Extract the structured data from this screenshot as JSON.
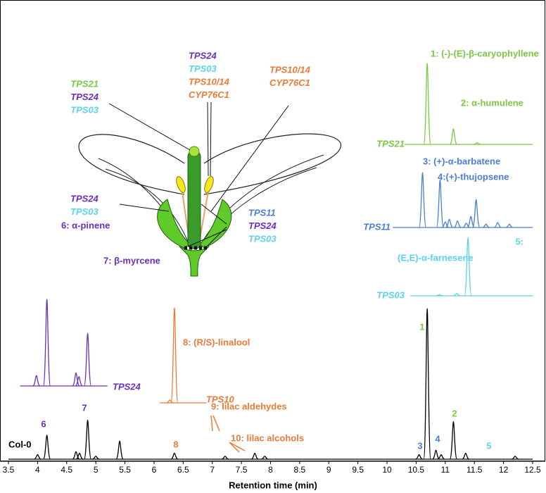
{
  "chart_data": {
    "type": "chromatogram",
    "x_label": "Retention time (min)",
    "xlim": [
      3.5,
      12.5
    ],
    "xticks": [
      3.5,
      4,
      4.5,
      5,
      5.5,
      6,
      6.5,
      7,
      7.5,
      8,
      8.5,
      9,
      9.5,
      10,
      10.5,
      11,
      11.5,
      12,
      12.5
    ],
    "ylim": [
      0,
      100
    ],
    "series": [
      {
        "name": "Col-0",
        "color": "#000000",
        "xlim": [
          3.5,
          12.5
        ],
        "x": [
          4.0,
          4.16,
          4.66,
          4.72,
          4.86,
          5.0,
          5.41,
          6.35,
          7.22,
          7.73,
          7.9,
          10.55,
          10.69,
          10.84,
          10.93,
          11.14,
          11.35,
          12.2
        ],
        "values": [
          3,
          16,
          5,
          4,
          26,
          2,
          12,
          4,
          2,
          4,
          2,
          3,
          100,
          6,
          3,
          25,
          4,
          2
        ]
      },
      {
        "name": "TPS21",
        "color": "#7ac943",
        "xlim": [
          10.3,
          12.5
        ],
        "x": [
          10.69,
          11.14,
          11.55
        ],
        "values": [
          100,
          19,
          2
        ]
      },
      {
        "name": "TPS11",
        "color": "#4a7fd4",
        "xlim": [
          10.1,
          12.5
        ],
        "x": [
          10.61,
          10.91,
          11.0,
          11.07,
          11.21,
          11.36,
          11.44,
          11.53,
          11.7,
          11.9,
          12.1
        ],
        "values": [
          100,
          87,
          10,
          15,
          12,
          8,
          20,
          51,
          6,
          9,
          6
        ]
      },
      {
        "name": "TPS03",
        "color": "#5bd3ea",
        "xlim": [
          10.4,
          12.5
        ],
        "x": [
          10.9,
          11.2,
          11.39
        ],
        "values": [
          2,
          4,
          100
        ]
      },
      {
        "name": "TPS24",
        "color": "#6a2fc0",
        "xlim": [
          3.7,
          5.2
        ],
        "x": [
          3.98,
          4.16,
          4.66,
          4.71,
          4.86
        ],
        "values": [
          12,
          100,
          15,
          11,
          61
        ]
      },
      {
        "name": "TPS10",
        "color": "#ec7a36",
        "xlim": [
          6.1,
          6.9
        ],
        "x": [
          6.27,
          6.35
        ],
        "values": [
          3,
          100
        ]
      }
    ],
    "compounds": [
      {
        "text": "1: (-)-(E)-β-caryophyllene",
        "color": "#7ac943"
      },
      {
        "text": "2: α-humulene",
        "color": "#7ac943"
      },
      {
        "text": "3: (+)-α-barbatene",
        "color": "#4a7fd4"
      },
      {
        "text": "4:(+)-thujopsene",
        "color": "#4a7fd4"
      },
      {
        "text": "5:",
        "color": "#5bd3ea"
      },
      {
        "text": "(E,E)-α-farnesene",
        "color": "#5bd3ea"
      },
      {
        "text": "6: α-pinene",
        "color": "#6a2fc0"
      },
      {
        "text": "7: β-myrcene",
        "color": "#6a2fc0"
      },
      {
        "text": "8: (R/S)-linalool",
        "color": "#ec7a36"
      },
      {
        "text": "9: lilac aldehydes",
        "color": "#ec7a36"
      },
      {
        "text": "10: lilac alcohols",
        "color": "#ec7a36"
      }
    ],
    "peak_labels": [
      {
        "text": "6",
        "color": "#6a2fc0"
      },
      {
        "text": "7",
        "color": "#6a2fc0"
      },
      {
        "text": "8",
        "color": "#ec7a36"
      },
      {
        "text": "1",
        "color": "#7ac943"
      },
      {
        "text": "2",
        "color": "#7ac943"
      },
      {
        "text": "3",
        "color": "#4a7fd4"
      },
      {
        "text": "4",
        "color": "#4a7fd4"
      },
      {
        "text": "5",
        "color": "#5bd3ea"
      }
    ]
  },
  "flower": {
    "groups": [
      [
        {
          "text": "TPS21",
          "color": "#7ac943"
        },
        {
          "text": "TPS24",
          "color": "#6a2fc0"
        },
        {
          "text": "TPS03",
          "color": "#5bd3ea"
        }
      ],
      [
        {
          "text": "TPS24",
          "color": "#6a2fc0"
        },
        {
          "text": "TPS03",
          "color": "#5bd3ea"
        },
        {
          "text": "TPS10/14",
          "color": "#ec7a36"
        },
        {
          "text": "CYP76C1",
          "color": "#ec7a36"
        }
      ],
      [
        {
          "text": "TPS10/14",
          "color": "#ec7a36"
        },
        {
          "text": "CYP76C1",
          "color": "#ec7a36"
        }
      ],
      [
        {
          "text": "TPS24",
          "color": "#6a2fc0"
        },
        {
          "text": "TPS03",
          "color": "#5bd3ea"
        }
      ],
      [
        {
          "text": "TPS11",
          "color": "#4a7fd4"
        },
        {
          "text": "TPS24",
          "color": "#6a2fc0"
        },
        {
          "text": "TPS03",
          "color": "#5bd3ea"
        }
      ]
    ]
  }
}
